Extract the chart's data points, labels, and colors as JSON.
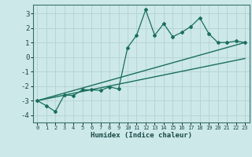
{
  "xlabel": "Humidex (Indice chaleur)",
  "background_color": "#cce8e8",
  "grid_color": "#b8d4d4",
  "line_color": "#1a6e5e",
  "xlim": [
    -0.5,
    23.5
  ],
  "ylim": [
    -4.5,
    3.6
  ],
  "xticks": [
    0,
    1,
    2,
    3,
    4,
    5,
    6,
    7,
    8,
    9,
    10,
    11,
    12,
    13,
    14,
    15,
    16,
    17,
    18,
    19,
    20,
    21,
    22,
    23
  ],
  "yticks": [
    -4,
    -3,
    -2,
    -1,
    0,
    1,
    2,
    3
  ],
  "line1_x": [
    0,
    1,
    2,
    3,
    4,
    5,
    6,
    7,
    8,
    9,
    10,
    11,
    12,
    13,
    14,
    15,
    16,
    17,
    18,
    19,
    20,
    21,
    22,
    23
  ],
  "line1_y": [
    -3.0,
    -3.35,
    -3.75,
    -2.6,
    -2.65,
    -2.25,
    -2.25,
    -2.3,
    -2.05,
    -2.2,
    0.65,
    1.5,
    3.25,
    1.5,
    2.3,
    1.4,
    1.7,
    2.1,
    2.7,
    1.6,
    1.0,
    1.0,
    1.1,
    1.0
  ],
  "line2_x": [
    0,
    23
  ],
  "line2_y": [
    -3.0,
    1.0
  ],
  "line3_x": [
    0,
    23
  ],
  "line3_y": [
    -3.0,
    -0.1
  ]
}
